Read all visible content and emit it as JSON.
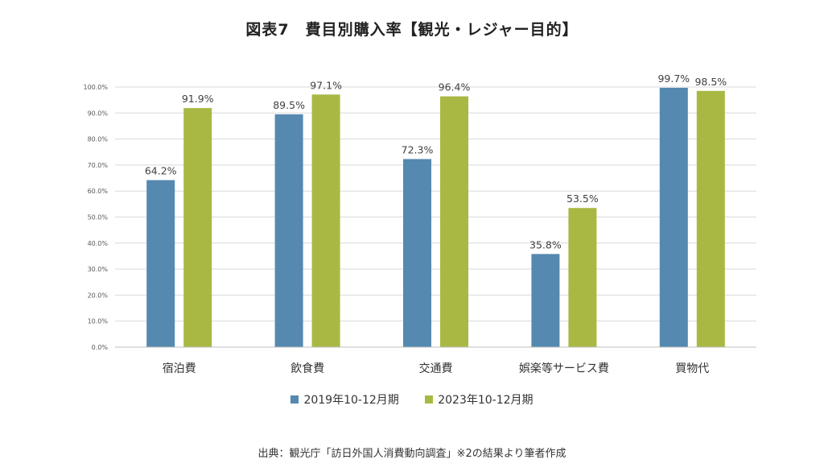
{
  "chart_data": {
    "type": "bar",
    "title": "図表7　費目別購入率【観光・レジャー目的】",
    "categories": [
      "宿泊費",
      "飲食費",
      "交通費",
      "娯楽等サービス費",
      "買物代"
    ],
    "series": [
      {
        "name": "2019年10-12月期",
        "color": "#5589B0",
        "values": [
          64.2,
          89.5,
          72.3,
          35.8,
          99.7
        ],
        "labels": [
          "64.2%",
          "89.5%",
          "72.3%",
          "35.8%",
          "99.7%"
        ]
      },
      {
        "name": "2023年10-12月期",
        "color": "#A9B843",
        "values": [
          91.9,
          97.1,
          96.4,
          53.5,
          98.5
        ],
        "labels": [
          "91.9%",
          "97.1%",
          "96.4%",
          "53.5%",
          "98.5%"
        ]
      }
    ],
    "yticks": [
      "0.0%",
      "10.0%",
      "20.0%",
      "30.0%",
      "40.0%",
      "50.0%",
      "60.0%",
      "70.0%",
      "80.0%",
      "90.0%",
      "100.0%"
    ],
    "ylim": [
      0,
      100
    ],
    "legend_position": "bottom",
    "grid": true
  },
  "source": "出典：観光庁「訪日外国人消費動向調査」※2の結果より筆者作成"
}
